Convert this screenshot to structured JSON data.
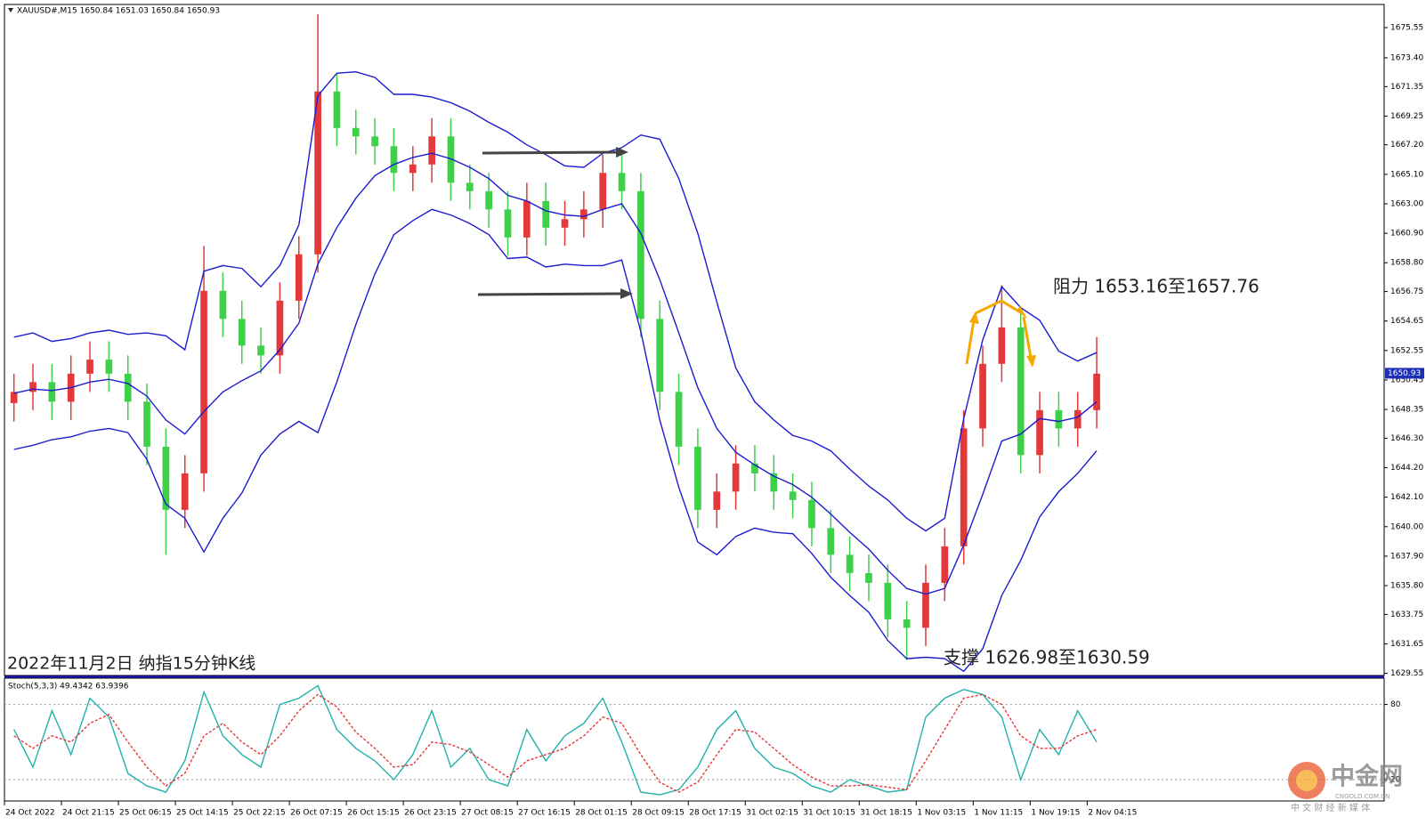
{
  "chart_data": [
    {
      "type": "candlestick",
      "title": "XAUUSD#,M15 1650.84 1651.03 1650.84 1650.93",
      "caption": "2022年11月2日 纳指15分钟K线",
      "annotations": [
        "阻力 1653.16至1657.76",
        "支撑 1626.98至1630.59"
      ],
      "categories": [
        "24 Oct 2022",
        null,
        null,
        "24 Oct 21:15",
        null,
        null,
        "25 Oct 06:15",
        null,
        null,
        "25 Oct 14:15",
        null,
        null,
        "25 Oct 22:15",
        null,
        null,
        "26 Oct 07:15",
        null,
        null,
        "26 Oct 15:15",
        null,
        null,
        "26 Oct 23:15",
        null,
        null,
        "27 Oct 08:15",
        null,
        null,
        "27 Oct 16:15",
        null,
        null,
        "28 Oct 01:15",
        null,
        null,
        "28 Oct 09:15",
        null,
        null,
        "28 Oct 17:15",
        null,
        null,
        "31 Oct 02:15",
        null,
        null,
        "31 Oct 10:15",
        null,
        null,
        "31 Oct 18:15",
        null,
        null,
        "1 Nov 03:15",
        null,
        null,
        "1 Nov 11:15",
        null,
        null,
        "1 Nov 19:15",
        null,
        null,
        "2 Nov 04:15"
      ],
      "open": [
        1648.8,
        1649.6,
        1650.3,
        1648.9,
        1650.9,
        1651.9,
        1650.9,
        1648.9,
        1645.7,
        1641.2,
        1643.8,
        1656.8,
        1654.8,
        1652.9,
        1652.2,
        1656.1,
        1659.4,
        1671.0,
        1668.4,
        1667.8,
        1667.1,
        1665.2,
        1665.8,
        1667.8,
        1664.5,
        1663.9,
        1662.6,
        1660.6,
        1663.2,
        1661.3,
        1661.9,
        1662.6,
        1665.2,
        1663.9,
        1654.8,
        1649.6,
        1645.7,
        1641.2,
        1642.5,
        1644.5,
        1643.8,
        1642.5,
        1641.9,
        1639.9,
        1638.0,
        1636.7,
        1636.0,
        1633.4,
        1632.8,
        1636.0,
        1638.6,
        1647.0,
        1651.6,
        1654.2,
        1645.1,
        1648.3,
        1647.0,
        1648.3
      ],
      "high": [
        1650.9,
        1651.6,
        1651.6,
        1652.2,
        1653.2,
        1653.2,
        1652.2,
        1650.2,
        1647.0,
        1645.1,
        1660.0,
        1658.1,
        1656.1,
        1654.2,
        1657.4,
        1660.7,
        1676.5,
        1672.3,
        1669.7,
        1669.1,
        1668.4,
        1667.1,
        1669.1,
        1669.1,
        1665.8,
        1665.2,
        1663.9,
        1664.5,
        1664.5,
        1663.2,
        1663.9,
        1666.5,
        1666.5,
        1665.2,
        1656.1,
        1650.9,
        1647.0,
        1643.8,
        1645.8,
        1645.8,
        1645.1,
        1643.8,
        1643.2,
        1641.2,
        1639.3,
        1638.0,
        1637.3,
        1634.7,
        1637.3,
        1639.9,
        1648.3,
        1652.9,
        1657.2,
        1655.5,
        1649.6,
        1649.6,
        1649.6,
        1653.5
      ],
      "low": [
        1647.5,
        1648.3,
        1647.6,
        1647.6,
        1649.6,
        1649.6,
        1647.6,
        1644.4,
        1638.0,
        1639.9,
        1642.5,
        1653.5,
        1651.6,
        1650.9,
        1650.9,
        1654.8,
        1658.1,
        1667.1,
        1666.5,
        1665.8,
        1663.9,
        1663.9,
        1664.5,
        1663.2,
        1662.6,
        1661.3,
        1659.3,
        1659.3,
        1660.0,
        1660.0,
        1660.6,
        1661.3,
        1662.6,
        1653.5,
        1648.3,
        1644.4,
        1639.9,
        1639.9,
        1641.2,
        1642.5,
        1641.2,
        1640.6,
        1638.6,
        1636.7,
        1635.4,
        1634.7,
        1632.1,
        1630.5,
        1631.5,
        1634.7,
        1637.3,
        1645.7,
        1650.3,
        1643.8,
        1643.8,
        1645.7,
        1645.7,
        1647.0
      ],
      "close": [
        1649.6,
        1650.3,
        1648.9,
        1650.9,
        1651.9,
        1650.9,
        1648.9,
        1645.7,
        1641.2,
        1643.8,
        1656.8,
        1654.8,
        1652.9,
        1652.2,
        1656.1,
        1659.4,
        1671.0,
        1668.4,
        1667.8,
        1667.1,
        1665.2,
        1665.8,
        1667.8,
        1664.5,
        1663.9,
        1662.6,
        1660.6,
        1663.2,
        1661.3,
        1661.9,
        1662.6,
        1665.2,
        1663.9,
        1654.8,
        1649.6,
        1645.7,
        1641.2,
        1642.5,
        1644.5,
        1643.8,
        1642.5,
        1641.9,
        1639.9,
        1638.0,
        1636.7,
        1636.0,
        1633.4,
        1632.8,
        1636.0,
        1638.6,
        1647.0,
        1651.6,
        1654.2,
        1645.1,
        1648.3,
        1647.0,
        1648.3,
        1650.9
      ],
      "up_color": "#e5383b",
      "down_color": "#3fd04a",
      "series": [
        {
          "color": "#1c1ccf",
          "values": [
            1653.5,
            1653.8,
            1653.2,
            1653.4,
            1653.8,
            1654.0,
            1653.7,
            1653.8,
            1653.6,
            1652.6,
            1658.2,
            1658.6,
            1658.4,
            1657.1,
            1658.6,
            1661.5,
            1670.7,
            1672.3,
            1672.4,
            1672.0,
            1670.8,
            1670.8,
            1670.6,
            1670.2,
            1669.6,
            1668.8,
            1668.1,
            1667.2,
            1666.5,
            1665.7,
            1665.6,
            1666.6,
            1667.0,
            1667.9,
            1667.6,
            1664.8,
            1660.9,
            1656.0,
            1651.3,
            1648.9,
            1647.6,
            1646.5,
            1646.1,
            1645.4,
            1644.1,
            1642.9,
            1641.9,
            1640.6,
            1639.7,
            1640.6,
            1647.7,
            1653.3,
            1657.1,
            1655.6,
            1654.7,
            1652.5,
            1651.8,
            1652.4
          ]
        },
        {
          "color": "#1c1ccf",
          "values": [
            1649.5,
            1649.8,
            1649.7,
            1649.9,
            1650.3,
            1650.5,
            1650.2,
            1649.3,
            1647.6,
            1646.6,
            1648.2,
            1649.6,
            1650.4,
            1651.1,
            1652.6,
            1654.5,
            1658.7,
            1661.3,
            1663.4,
            1665.0,
            1665.8,
            1666.3,
            1666.6,
            1666.2,
            1665.6,
            1664.8,
            1663.6,
            1663.2,
            1662.5,
            1662.2,
            1662.1,
            1662.6,
            1663.0,
            1660.9,
            1657.6,
            1653.8,
            1649.9,
            1647.0,
            1645.3,
            1644.4,
            1643.6,
            1643.0,
            1642.1,
            1640.9,
            1639.6,
            1638.4,
            1636.9,
            1635.6,
            1635.2,
            1635.6,
            1638.7,
            1642.3,
            1646.1,
            1646.6,
            1647.7,
            1647.5,
            1647.8,
            1648.9
          ]
        },
        {
          "color": "#1c1ccf",
          "values": [
            1645.5,
            1645.8,
            1646.2,
            1646.4,
            1646.8,
            1647.0,
            1646.7,
            1644.8,
            1641.6,
            1640.6,
            1638.2,
            1640.6,
            1642.4,
            1645.1,
            1646.6,
            1647.5,
            1646.7,
            1650.3,
            1654.4,
            1658.0,
            1660.8,
            1661.8,
            1662.6,
            1662.2,
            1661.6,
            1660.8,
            1659.1,
            1659.2,
            1658.5,
            1658.7,
            1658.6,
            1658.6,
            1659.0,
            1653.9,
            1647.6,
            1642.8,
            1638.9,
            1638.0,
            1639.3,
            1639.9,
            1639.6,
            1639.5,
            1638.1,
            1636.4,
            1635.1,
            1633.9,
            1631.9,
            1630.6,
            1630.7,
            1630.6,
            1629.7,
            1631.3,
            1635.1,
            1637.6,
            1640.7,
            1642.5,
            1643.8,
            1645.4
          ]
        }
      ],
      "last_price": 1650.93,
      "ylim": [
        1629.4,
        1677.2
      ],
      "yticks": [
        1675.55,
        {
          "value": 1673.4,
          "label": "1673.40"
        },
        1671.35,
        1669.25,
        {
          "value": 1667.2,
          "label": "1667.20"
        },
        {
          "value": 1665.1,
          "label": "1665.10"
        },
        {
          "value": 1663,
          "label": "1663.00"
        },
        {
          "value": 1660.9,
          "label": "1660.90"
        },
        {
          "value": 1658.8,
          "label": "1658.80"
        },
        1656.75,
        1654.65,
        1652.55,
        1650.45,
        1648.35,
        {
          "value": 1646.3,
          "label": "1646.30"
        },
        {
          "value": 1644.2,
          "label": "1644.20"
        },
        {
          "value": 1642.1,
          "label": "1642.10"
        },
        {
          "value": 1640,
          "label": "1640.00"
        },
        {
          "value": 1637.9,
          "label": "1637.90"
        },
        {
          "value": 1635.8,
          "label": "1635.80"
        },
        1633.75,
        1631.65,
        1629.55
      ]
    },
    {
      "type": "line",
      "title": "Stoch(5,3,3) 49.4342 63.9396",
      "series": [
        {
          "color": "#20b2aa",
          "style": "solid",
          "values": [
            60,
            30,
            75,
            40,
            85,
            70,
            25,
            15,
            10,
            35,
            90,
            55,
            40,
            30,
            80,
            85,
            95,
            60,
            45,
            35,
            20,
            40,
            75,
            30,
            45,
            20,
            15,
            60,
            35,
            55,
            65,
            85,
            50,
            10,
            8,
            12,
            30,
            60,
            75,
            45,
            30,
            25,
            15,
            10,
            20,
            15,
            10,
            12,
            70,
            85,
            92,
            88,
            70,
            20,
            60,
            40,
            75,
            50
          ]
        },
        {
          "color": "#e5383b",
          "style": "dashed",
          "values": [
            55,
            45,
            55,
            50,
            65,
            72,
            50,
            30,
            15,
            25,
            55,
            65,
            50,
            40,
            55,
            75,
            88,
            78,
            58,
            45,
            30,
            32,
            50,
            48,
            42,
            32,
            22,
            35,
            40,
            45,
            55,
            70,
            65,
            40,
            18,
            10,
            18,
            40,
            60,
            58,
            45,
            32,
            22,
            15,
            15,
            16,
            14,
            12,
            35,
            60,
            85,
            88,
            80,
            55,
            45,
            45,
            55,
            60
          ]
        }
      ],
      "ylim": [
        3,
        101
      ],
      "yticks": [
        20,
        80
      ],
      "grid": true
    }
  ],
  "watermark": {
    "name": "中金网",
    "domain": "CNGOLD.COM.CN",
    "slogan": "中 文 财 经 新 媒 体"
  }
}
